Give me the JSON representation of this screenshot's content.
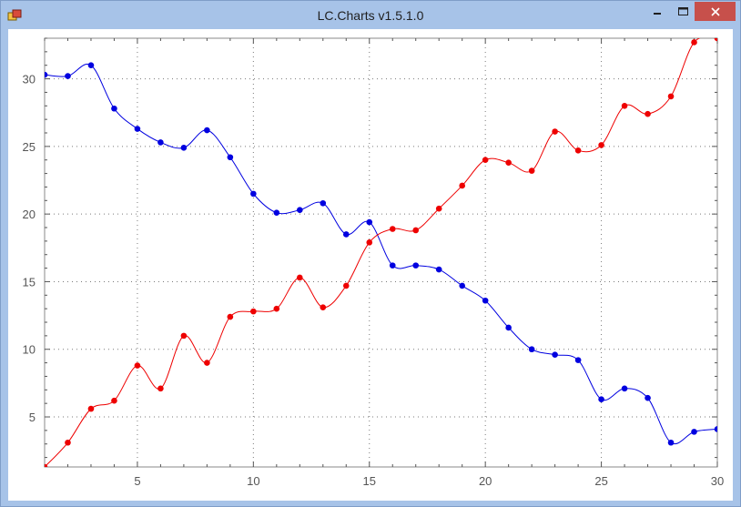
{
  "window": {
    "title": "LC.Charts v1.5.1.0",
    "controls": [
      "minimize",
      "maximize",
      "close"
    ],
    "icon": "app-icon"
  },
  "chart_data": {
    "type": "line",
    "title": "",
    "xlabel": "",
    "ylabel": "",
    "xlim": [
      1,
      30
    ],
    "ylim": [
      1.3,
      33
    ],
    "grid": true,
    "x_ticks": [
      5,
      10,
      15,
      20,
      25,
      30
    ],
    "y_ticks": [
      5,
      10,
      15,
      20,
      25,
      30
    ],
    "series": [
      {
        "color": "#0000e0",
        "x": [
          1,
          2,
          3,
          4,
          5,
          6,
          7,
          8,
          9,
          10,
          11,
          12,
          13,
          14,
          15,
          16,
          17,
          18,
          19,
          20,
          21,
          22,
          23,
          24,
          25,
          26,
          27,
          28,
          29,
          30
        ],
        "y": [
          30.3,
          30.2,
          31.0,
          27.8,
          26.3,
          25.3,
          24.9,
          26.2,
          24.2,
          21.5,
          20.1,
          20.3,
          20.8,
          18.5,
          19.4,
          16.2,
          16.2,
          15.9,
          14.7,
          13.6,
          11.6,
          10.0,
          9.6,
          9.2,
          6.3,
          7.1,
          6.4,
          3.1,
          3.9,
          4.1
        ]
      },
      {
        "color": "#ee0000",
        "x": [
          1,
          2,
          3,
          4,
          5,
          6,
          7,
          8,
          9,
          10,
          11,
          12,
          13,
          14,
          15,
          16,
          17,
          18,
          19,
          20,
          21,
          22,
          23,
          24,
          25,
          26,
          27,
          28,
          29,
          30
        ],
        "y": [
          1.3,
          3.1,
          5.6,
          6.2,
          8.8,
          7.1,
          11.0,
          9.0,
          12.4,
          12.8,
          13.0,
          15.3,
          13.1,
          14.7,
          17.9,
          18.9,
          18.8,
          20.4,
          22.1,
          24.0,
          23.8,
          23.2,
          26.1,
          24.7,
          25.1,
          28.0,
          27.4,
          28.7,
          32.7,
          33.0
        ]
      }
    ]
  }
}
